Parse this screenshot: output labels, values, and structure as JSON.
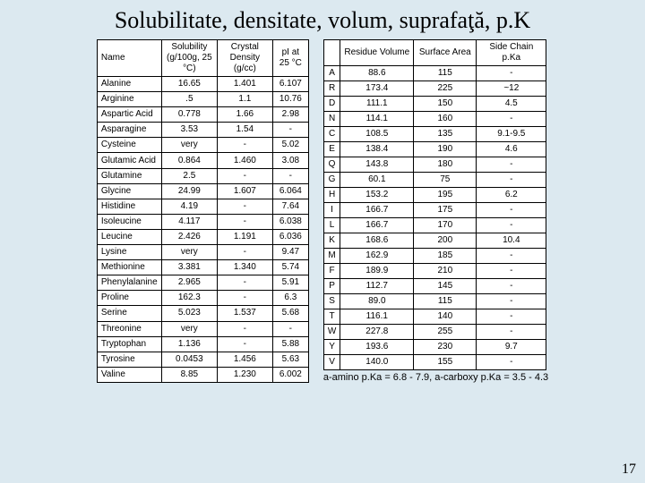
{
  "title": "Solubilitate, densitate, volum, suprafaţă, p.K",
  "page_number": "17",
  "left_table": {
    "headers": [
      "Name",
      "Solubility (g/100g, 25 °C)",
      "Crystal Density (g/cc)",
      "pI at 25 °C"
    ],
    "rows": [
      [
        "Alanine",
        "16.65",
        "1.401",
        "6.107"
      ],
      [
        "Arginine",
        ".5",
        "1.1",
        "10.76"
      ],
      [
        "Aspartic Acid",
        "0.778",
        "1.66",
        "2.98"
      ],
      [
        "Asparagine",
        "3.53",
        "1.54",
        "-"
      ],
      [
        "Cysteine",
        "very",
        "-",
        "5.02"
      ],
      [
        "Glutamic Acid",
        "0.864",
        "1.460",
        "3.08"
      ],
      [
        "Glutamine",
        "2.5",
        "-",
        "-"
      ],
      [
        "Glycine",
        "24.99",
        "1.607",
        "6.064"
      ],
      [
        "Histidine",
        "4.19",
        "-",
        "7.64"
      ],
      [
        "Isoleucine",
        "4.117",
        "-",
        "6.038"
      ],
      [
        "Leucine",
        "2.426",
        "1.191",
        "6.036"
      ],
      [
        "Lysine",
        "very",
        "-",
        "9.47"
      ],
      [
        "Methionine",
        "3.381",
        "1.340",
        "5.74"
      ],
      [
        "Phenylalanine",
        "2.965",
        "-",
        "5.91"
      ],
      [
        "Proline",
        "162.3",
        "-",
        "6.3"
      ],
      [
        "Serine",
        "5.023",
        "1.537",
        "5.68"
      ],
      [
        "Threonine",
        "very",
        "-",
        "-"
      ],
      [
        "Tryptophan",
        "1.136",
        "-",
        "5.88"
      ],
      [
        "Tyrosine",
        "0.0453",
        "1.456",
        "5.63"
      ],
      [
        "Valine",
        "8.85",
        "1.230",
        "6.002"
      ]
    ]
  },
  "right_table": {
    "headers": [
      "",
      "Residue Volume",
      "Surface Area",
      "Side Chain p.Ka"
    ],
    "rows": [
      [
        "A",
        "88.6",
        "115",
        "-"
      ],
      [
        "R",
        "173.4",
        "225",
        "~12"
      ],
      [
        "D",
        "111.1",
        "150",
        "4.5"
      ],
      [
        "N",
        "114.1",
        "160",
        "-"
      ],
      [
        "C",
        "108.5",
        "135",
        "9.1-9.5"
      ],
      [
        "E",
        "138.4",
        "190",
        "4.6"
      ],
      [
        "Q",
        "143.8",
        "180",
        "-"
      ],
      [
        "G",
        "60.1",
        "75",
        "-"
      ],
      [
        "H",
        "153.2",
        "195",
        "6.2"
      ],
      [
        "I",
        "166.7",
        "175",
        "-"
      ],
      [
        "L",
        "166.7",
        "170",
        "-"
      ],
      [
        "K",
        "168.6",
        "200",
        "10.4"
      ],
      [
        "M",
        "162.9",
        "185",
        "-"
      ],
      [
        "F",
        "189.9",
        "210",
        "-"
      ],
      [
        "P",
        "112.7",
        "145",
        "-"
      ],
      [
        "S",
        "89.0",
        "115",
        "-"
      ],
      [
        "T",
        "116.1",
        "140",
        "-"
      ],
      [
        "W",
        "227.8",
        "255",
        "-"
      ],
      [
        "Y",
        "193.6",
        "230",
        "9.7"
      ],
      [
        "V",
        "140.0",
        "155",
        "-"
      ]
    ],
    "footnote": "a-amino p.Ka = 6.8 - 7.9, a-carboxy p.Ka = 3.5 - 4.3"
  }
}
